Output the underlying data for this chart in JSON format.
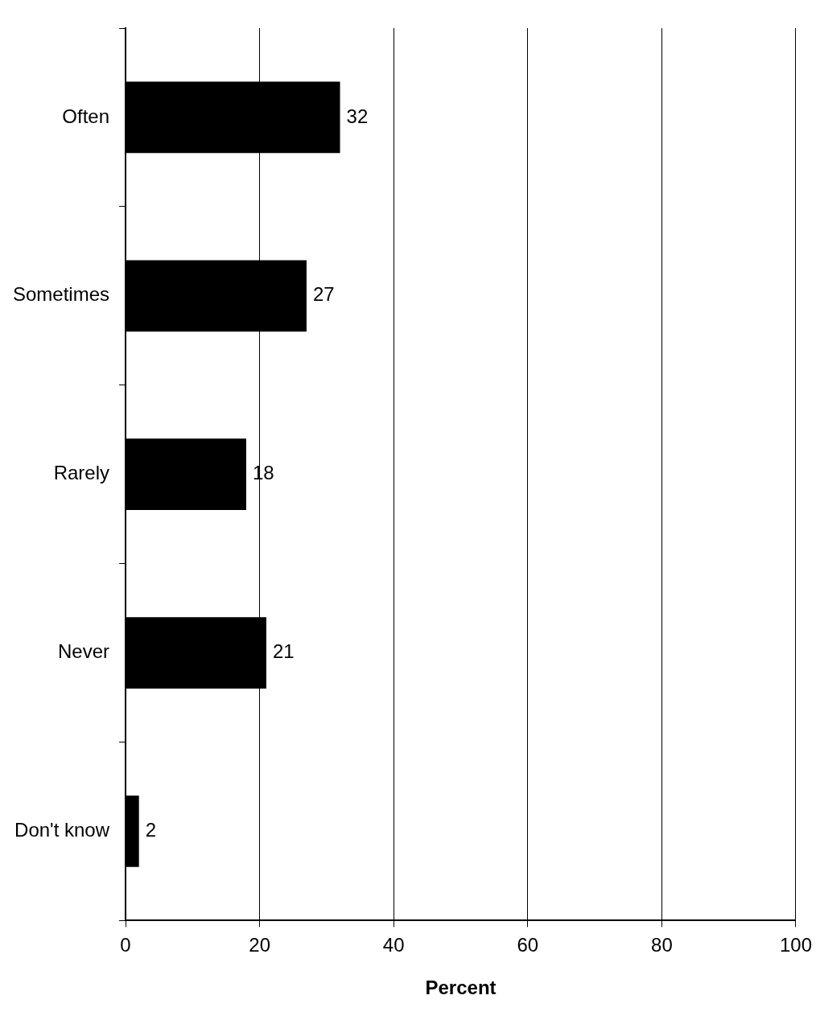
{
  "chart_data": {
    "type": "bar",
    "orientation": "horizontal",
    "xlabel": "Percent",
    "categories": [
      "Often",
      "Sometimes",
      "Rarely",
      "Never",
      "Don't know"
    ],
    "values": [
      32,
      27,
      18,
      21,
      2
    ],
    "color": "#000000",
    "xlim": [
      0,
      100
    ],
    "xticks": [
      0,
      20,
      40,
      60,
      80,
      100
    ],
    "grid": "x",
    "data_labels": true,
    "legend": false
  }
}
